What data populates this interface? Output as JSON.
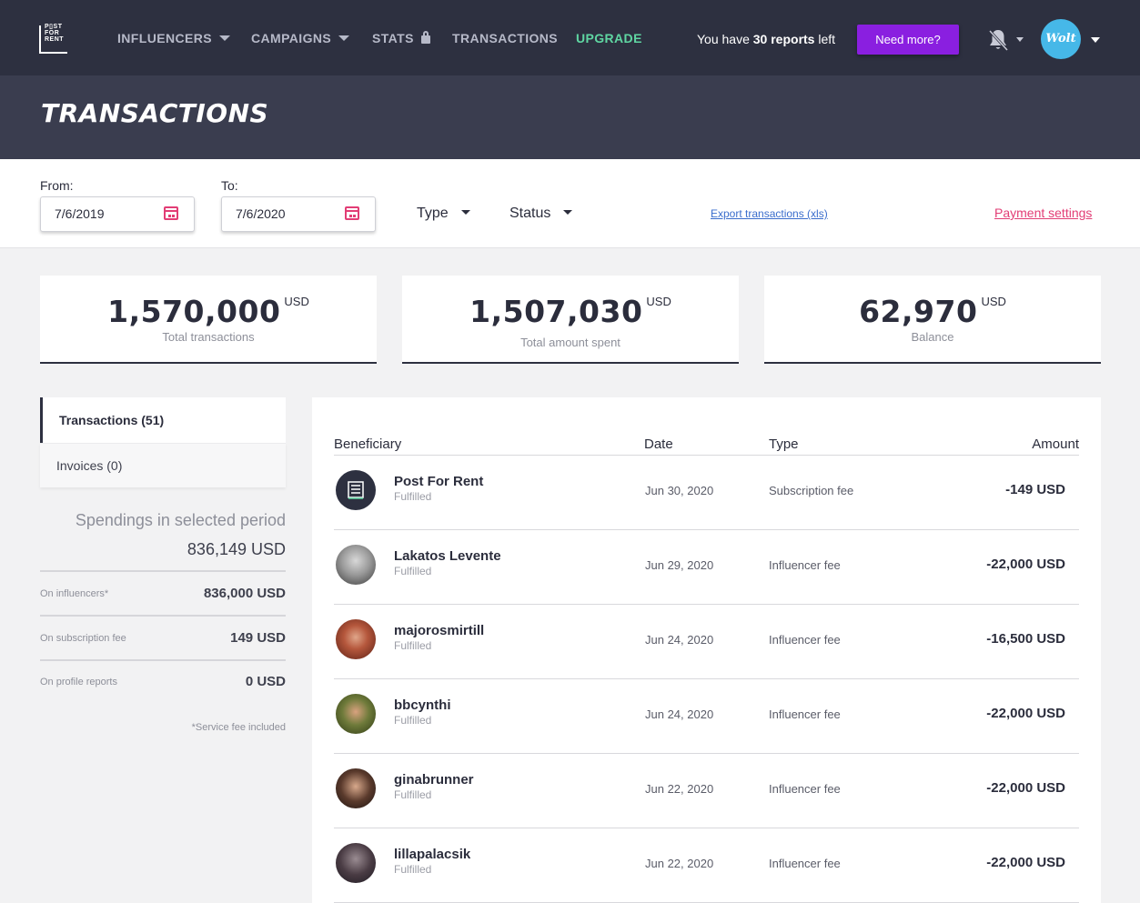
{
  "nav": {
    "logo_text": "POST FOR RENT",
    "items": [
      {
        "label": "INFLUENCERS"
      },
      {
        "label": "CAMPAIGNS"
      },
      {
        "label": "STATS"
      },
      {
        "label": "TRANSACTIONS"
      },
      {
        "label": "UPGRADE"
      }
    ],
    "reports_prefix": "You have ",
    "reports_count": "30 reports",
    "reports_suffix": " left",
    "need_more_label": "Need more?",
    "avatar_text": "Wolt"
  },
  "page": {
    "title": "TRANSACTIONS"
  },
  "filters": {
    "from_label": "From:",
    "from_value": "7/6/2019",
    "to_label": "To:",
    "to_value": "7/6/2020",
    "type_label": "Type",
    "status_label": "Status",
    "export_label": "Export transactions (xls)",
    "payment_settings_label": "Payment settings"
  },
  "stats": [
    {
      "value": "1,570,000",
      "currency": "USD",
      "label": "Total transactions"
    },
    {
      "value": "1,507,030",
      "currency": "USD",
      "label": "Total amount spent"
    },
    {
      "value": "62,970",
      "currency": "USD",
      "label": "Balance"
    }
  ],
  "tabs": {
    "transactions": "Transactions (51)",
    "invoices": "Invoices (0)"
  },
  "spendings": {
    "title": "Spendings in selected period",
    "total": "836,149 USD",
    "rows": [
      {
        "label": "On influencers*",
        "value": "836,000 USD"
      },
      {
        "label": "On subscription fee",
        "value": "149 USD"
      },
      {
        "label": "On profile reports",
        "value": "0 USD"
      }
    ],
    "note": "*Service fee included"
  },
  "table": {
    "headers": {
      "beneficiary": "Beneficiary",
      "date": "Date",
      "type": "Type",
      "amount": "Amount"
    },
    "rows": [
      {
        "name": "Post For Rent",
        "status": "Fulfilled",
        "date": "Jun 30, 2020",
        "type": "Subscription fee",
        "amount": "-149 USD"
      },
      {
        "name": "Lakatos Levente",
        "status": "Fulfilled",
        "date": "Jun 29, 2020",
        "type": "Influencer fee",
        "amount": "-22,000 USD"
      },
      {
        "name": "majorosmirtill",
        "status": "Fulfilled",
        "date": "Jun 24, 2020",
        "type": "Influencer fee",
        "amount": "-16,500 USD"
      },
      {
        "name": "bbcynthi",
        "status": "Fulfilled",
        "date": "Jun 24, 2020",
        "type": "Influencer fee",
        "amount": "-22,000 USD"
      },
      {
        "name": "ginabrunner",
        "status": "Fulfilled",
        "date": "Jun 22, 2020",
        "type": "Influencer fee",
        "amount": "-22,000 USD"
      },
      {
        "name": "lillapalacsik",
        "status": "Fulfilled",
        "date": "Jun 22, 2020",
        "type": "Influencer fee",
        "amount": "-22,000 USD"
      }
    ]
  },
  "colors": {
    "nav_bg": "#2d3040",
    "header_bg": "#3a3d4f",
    "upgrade": "#5fd6a2",
    "need_more_bg": "#8a1fe0",
    "accent_pink": "#e23d75",
    "link_blue": "#3a6dcc"
  }
}
